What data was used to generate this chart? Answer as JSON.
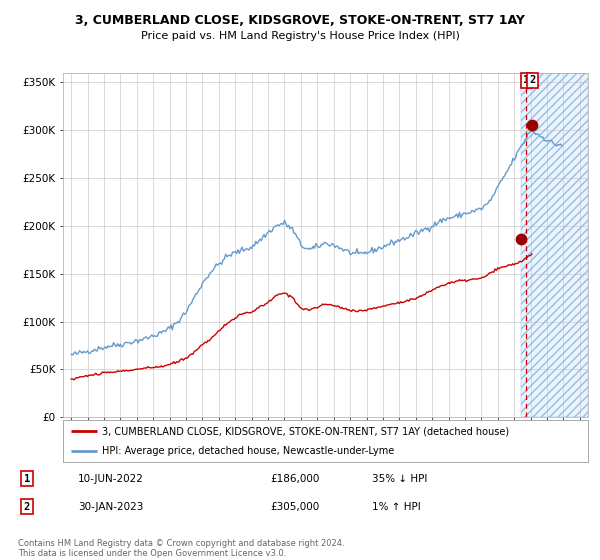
{
  "title": "3, CUMBERLAND CLOSE, KIDSGROVE, STOKE-ON-TRENT, ST7 1AY",
  "subtitle": "Price paid vs. HM Land Registry's House Price Index (HPI)",
  "hpi_label": "HPI: Average price, detached house, Newcastle-under-Lyme",
  "property_label": "3, CUMBERLAND CLOSE, KIDSGROVE, STOKE-ON-TRENT, ST7 1AY (detached house)",
  "footer1": "Contains HM Land Registry data © Crown copyright and database right 2024.",
  "footer2": "This data is licensed under the Open Government Licence v3.0.",
  "xlim": [
    1994.5,
    2026.5
  ],
  "ylim": [
    0,
    360000
  ],
  "yticks": [
    0,
    50000,
    100000,
    150000,
    200000,
    250000,
    300000,
    350000
  ],
  "ytick_labels": [
    "£0",
    "£50K",
    "£100K",
    "£150K",
    "£200K",
    "£250K",
    "£300K",
    "£350K"
  ],
  "sale1_date": 2022.44,
  "sale1_price": 186000,
  "sale1_label": "10-JUN-2022",
  "sale1_value_label": "£186,000",
  "sale1_pct": "35% ↓ HPI",
  "sale2_date": 2023.08,
  "sale2_price": 305000,
  "sale2_label": "30-JAN-2023",
  "sale2_value_label": "£305,000",
  "sale2_pct": "1% ↑ HPI",
  "vline_x": 2022.75,
  "vline_color": "#cc0000",
  "shade_start": 2022.44,
  "shade_end": 2026.5,
  "hpi_color": "#6699cc",
  "property_color": "#cc0000",
  "dot_color": "#990000",
  "background_color": "#ffffff",
  "grid_color": "#cccccc",
  "shade_color": "#ddeeff"
}
